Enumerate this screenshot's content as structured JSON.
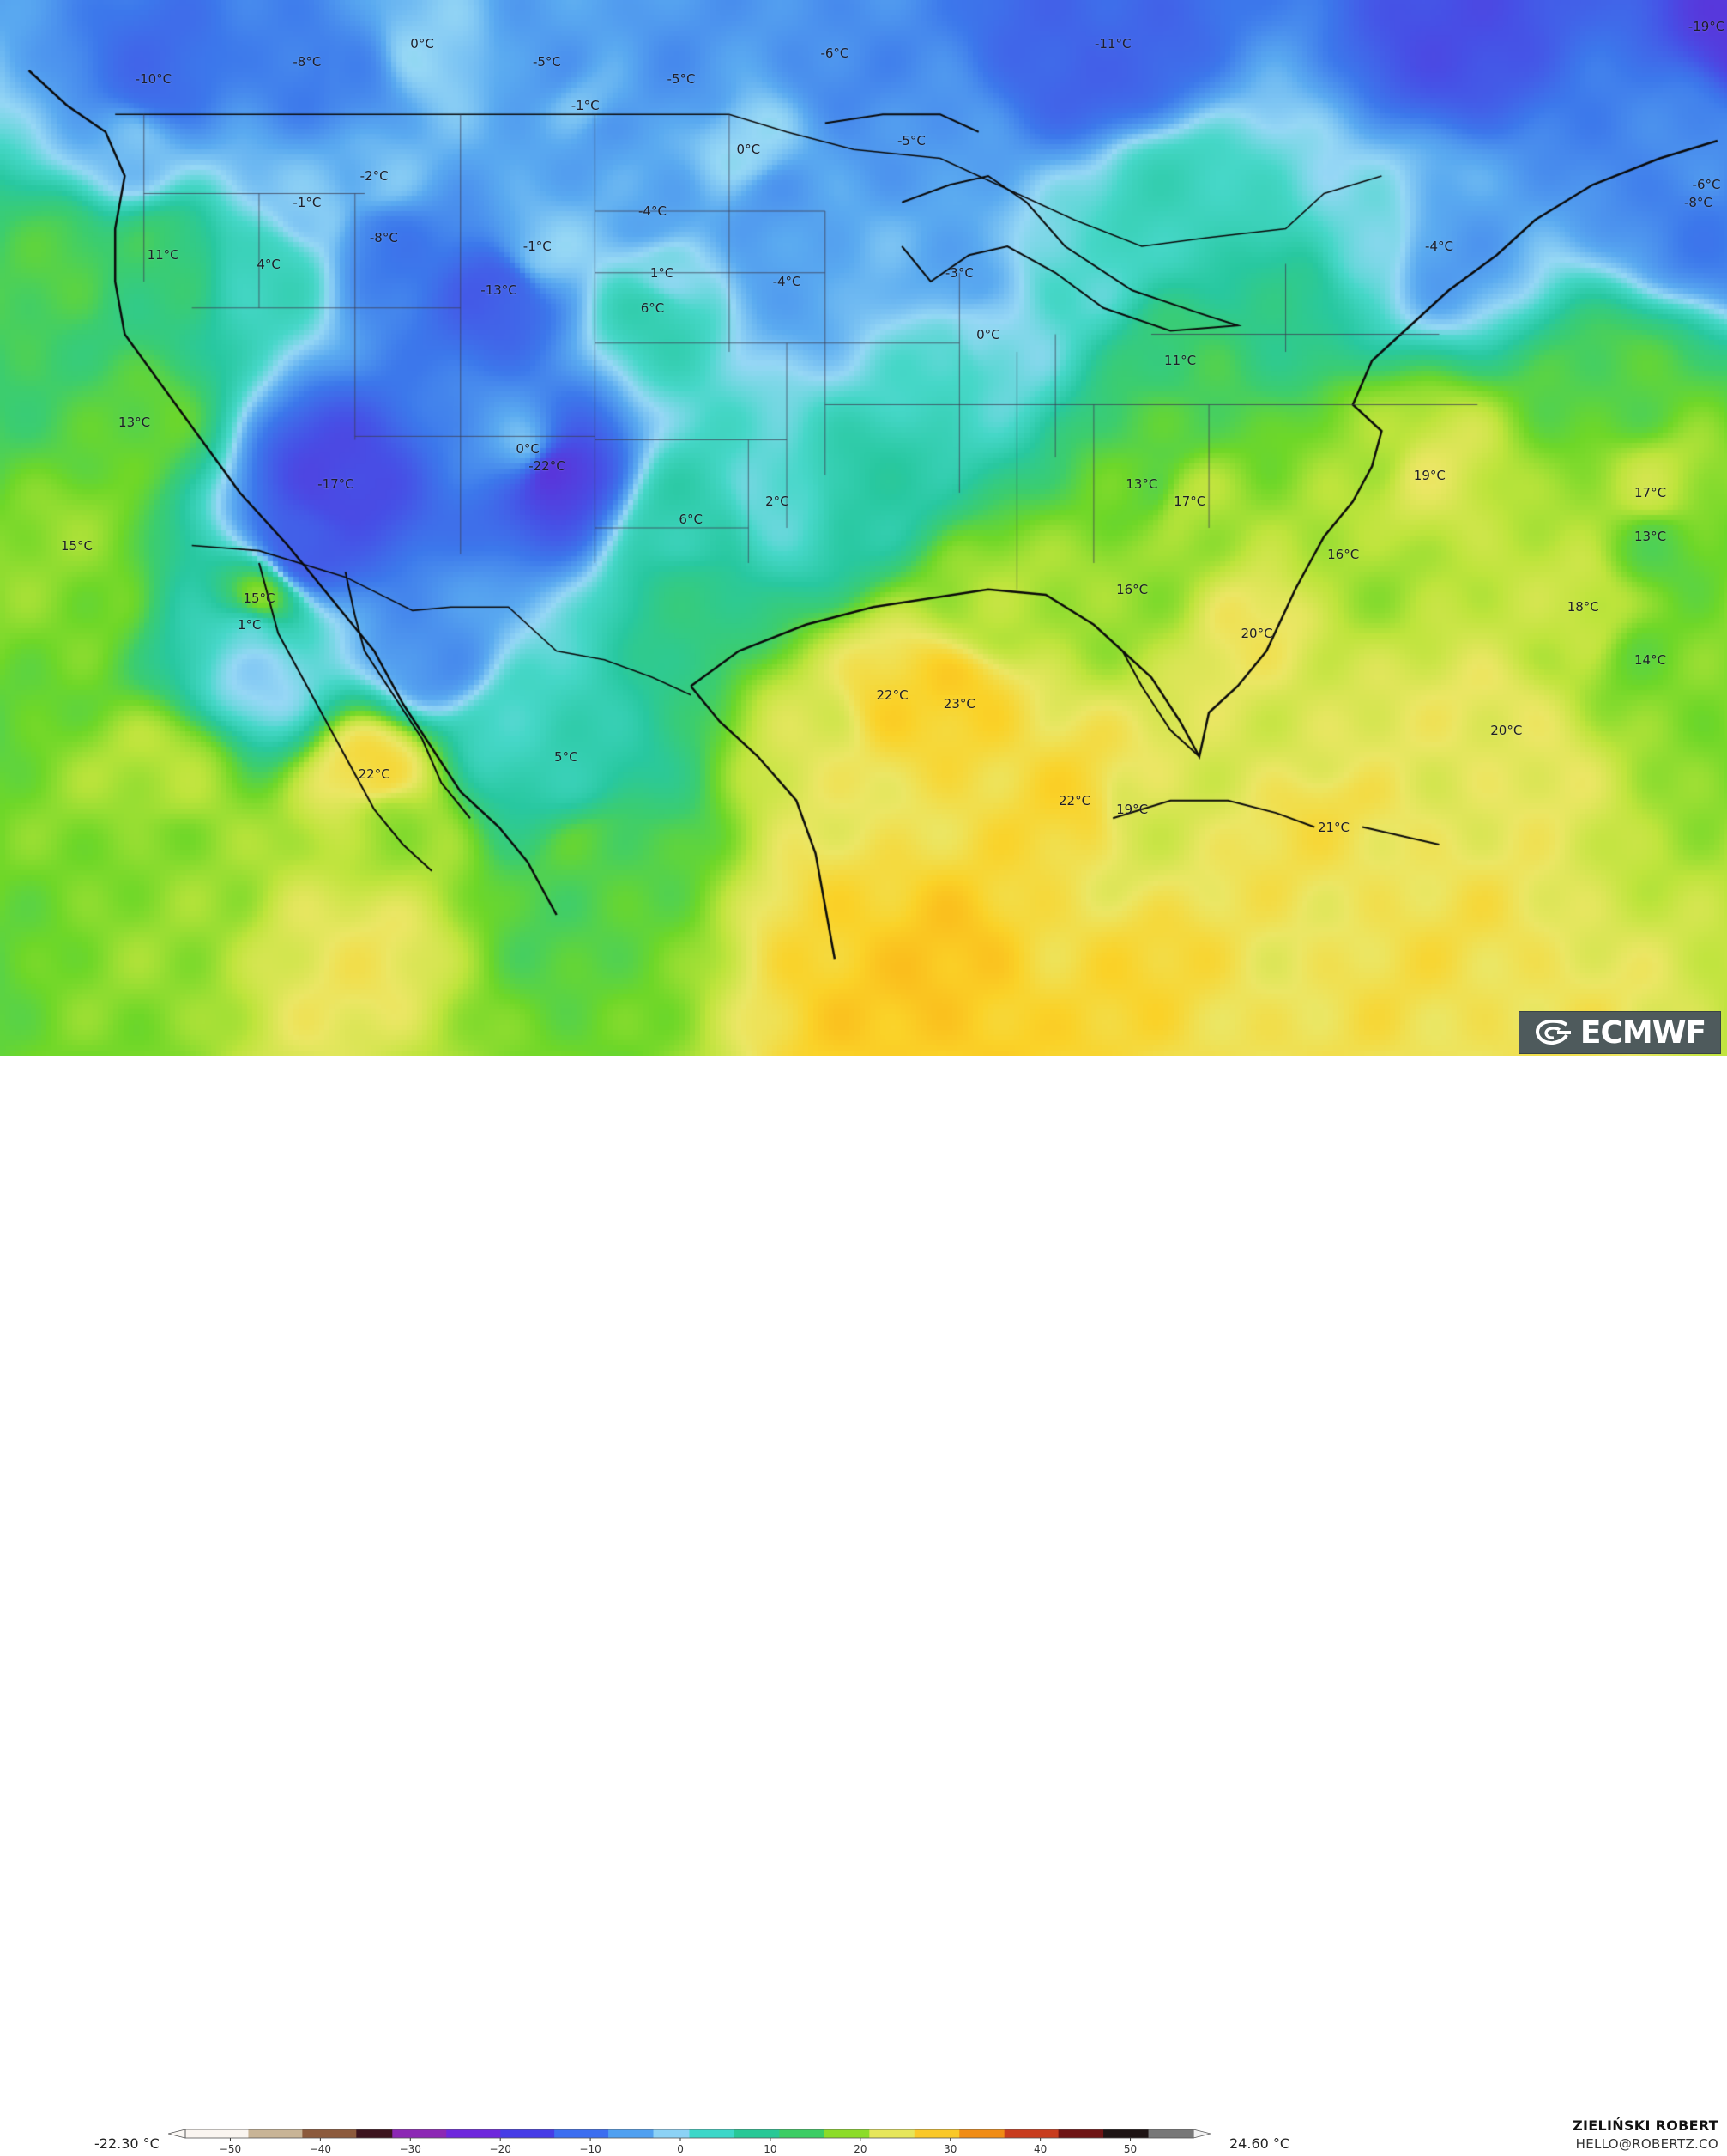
{
  "map": {
    "variable": "2m temperature",
    "unit": "°C",
    "provider": "ECMWF",
    "region": "Contiguous United States, northern Mexico, southern Canada, Gulf of Mexico",
    "palette_note": "blue/purple = cold, green = mild, yellow/orange = warm"
  },
  "temperature_labels": [
    {
      "text": "0°C",
      "lon": -113.0,
      "lat": 53.5
    },
    {
      "text": "-8°C",
      "lon": -119.0,
      "lat": 52.5
    },
    {
      "text": "-10°C",
      "lon": -127.0,
      "lat": 51.5
    },
    {
      "text": "-5°C",
      "lon": -106.5,
      "lat": 52.5
    },
    {
      "text": "-5°C",
      "lon": -99.5,
      "lat": 51.5
    },
    {
      "text": "-6°C",
      "lon": -91.5,
      "lat": 53.0
    },
    {
      "text": "-1°C",
      "lon": -104.5,
      "lat": 50.0
    },
    {
      "text": "-11°C",
      "lon": -77.0,
      "lat": 53.5
    },
    {
      "text": "-19°C",
      "lon": -44.0,
      "lat": 54.5
    },
    {
      "text": "0°C",
      "lon": -96.0,
      "lat": 47.5
    },
    {
      "text": "-5°C",
      "lon": -87.5,
      "lat": 48.0
    },
    {
      "text": "-2°C",
      "lon": -115.5,
      "lat": 46.0
    },
    {
      "text": "-1°C",
      "lon": -119.0,
      "lat": 44.5
    },
    {
      "text": "-6°C",
      "lon": -46.0,
      "lat": 45.5
    },
    {
      "text": "-8°C",
      "lon": -46.5,
      "lat": 44.5
    },
    {
      "text": "-4°C",
      "lon": -101.0,
      "lat": 44.0
    },
    {
      "text": "-8°C",
      "lon": -115.0,
      "lat": 42.5
    },
    {
      "text": "-4°C",
      "lon": -60.0,
      "lat": 42.0
    },
    {
      "text": "11°C",
      "lon": -126.5,
      "lat": 41.5
    },
    {
      "text": "4°C",
      "lon": -121.0,
      "lat": 41.0
    },
    {
      "text": "-1°C",
      "lon": -107.0,
      "lat": 42.0
    },
    {
      "text": "1°C",
      "lon": -100.5,
      "lat": 40.5
    },
    {
      "text": "-4°C",
      "lon": -94.0,
      "lat": 40.0
    },
    {
      "text": "-3°C",
      "lon": -85.0,
      "lat": 40.5
    },
    {
      "text": "-13°C",
      "lon": -109.0,
      "lat": 39.5
    },
    {
      "text": "6°C",
      "lon": -101.0,
      "lat": 38.5
    },
    {
      "text": "0°C",
      "lon": -83.5,
      "lat": 37.0
    },
    {
      "text": "11°C",
      "lon": -73.5,
      "lat": 35.5
    },
    {
      "text": "13°C",
      "lon": -128.0,
      "lat": 32.0
    },
    {
      "text": "0°C",
      "lon": -107.5,
      "lat": 30.5
    },
    {
      "text": "-22°C",
      "lon": -106.5,
      "lat": 29.5
    },
    {
      "text": "-17°C",
      "lon": -117.5,
      "lat": 28.5
    },
    {
      "text": "13°C",
      "lon": -75.5,
      "lat": 28.5
    },
    {
      "text": "19°C",
      "lon": -60.5,
      "lat": 29.0
    },
    {
      "text": "17°C",
      "lon": -73.0,
      "lat": 27.5
    },
    {
      "text": "17°C",
      "lon": -49.0,
      "lat": 28.0
    },
    {
      "text": "2°C",
      "lon": -94.5,
      "lat": 27.5
    },
    {
      "text": "6°C",
      "lon": -99.0,
      "lat": 26.5
    },
    {
      "text": "15°C",
      "lon": -131.0,
      "lat": 25.0
    },
    {
      "text": "13°C",
      "lon": -49.0,
      "lat": 25.5
    },
    {
      "text": "16°C",
      "lon": -65.0,
      "lat": 24.5
    },
    {
      "text": "15°C",
      "lon": -121.5,
      "lat": 22.0
    },
    {
      "text": "16°C",
      "lon": -76.0,
      "lat": 22.5
    },
    {
      "text": "18°C",
      "lon": -52.5,
      "lat": 21.5
    },
    {
      "text": "1°C",
      "lon": -122.0,
      "lat": 20.5
    },
    {
      "text": "20°C",
      "lon": -69.5,
      "lat": 20.0
    },
    {
      "text": "14°C",
      "lon": -49.0,
      "lat": 18.5
    },
    {
      "text": "22°C",
      "lon": -88.5,
      "lat": 16.5
    },
    {
      "text": "23°C",
      "lon": -85.0,
      "lat": 16.0
    },
    {
      "text": "20°C",
      "lon": -56.5,
      "lat": 14.5
    },
    {
      "text": "22°C",
      "lon": -115.5,
      "lat": 12.0
    },
    {
      "text": "5°C",
      "lon": -105.5,
      "lat": 13.0
    },
    {
      "text": "22°C",
      "lon": -79.0,
      "lat": 10.5
    },
    {
      "text": "19°C",
      "lon": -76.0,
      "lat": 10.0
    },
    {
      "text": "21°C",
      "lon": -65.5,
      "lat": 9.0
    }
  ],
  "legend": {
    "min_label": "-22.30 °C",
    "max_label": "24.60 °C",
    "ticks": [
      "−50",
      "−40",
      "−30",
      "−20",
      "−10",
      "0",
      "10",
      "20",
      "30",
      "40",
      "50"
    ],
    "range": [
      -55,
      57
    ]
  },
  "branding": {
    "logo_text": "ECMWF",
    "author_name": "ZIELIŃSKI ROBERT",
    "author_contact": "HELLO@ROBERTZ.CO"
  }
}
